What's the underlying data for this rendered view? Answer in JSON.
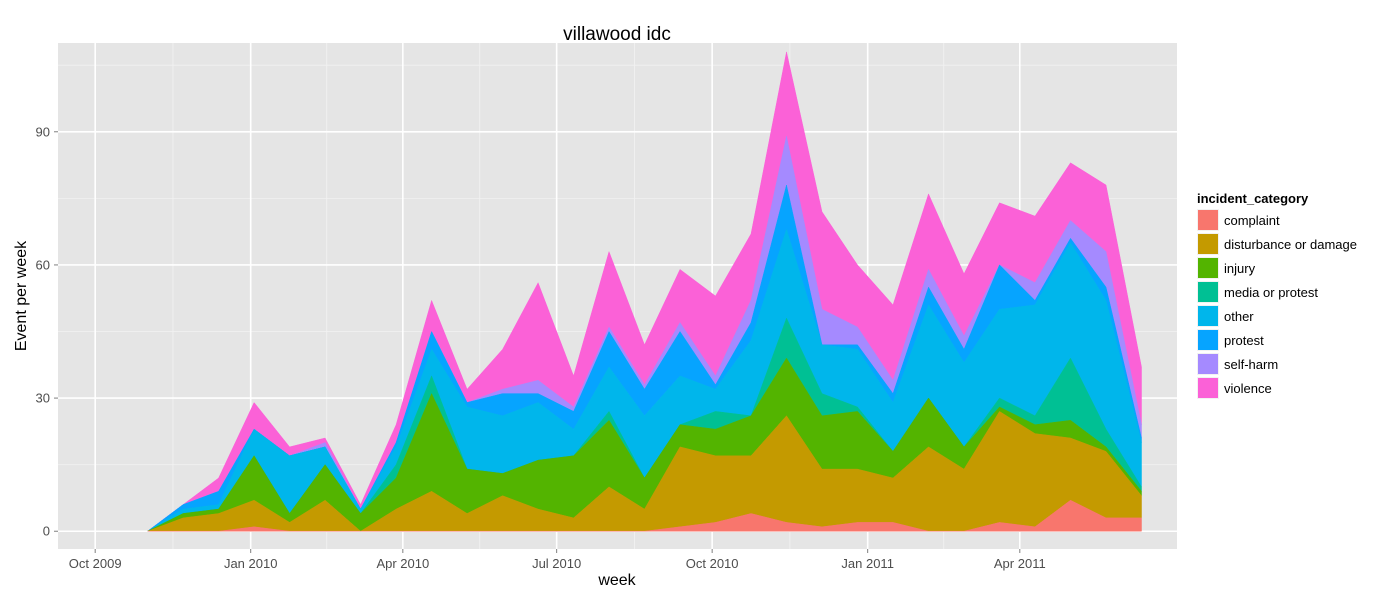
{
  "chart_data": {
    "type": "area",
    "stacked": true,
    "title": "villawood idc",
    "xlabel": "week",
    "ylabel": "Event per week",
    "ylim": [
      -4,
      110
    ],
    "xlim": [
      "2009-09-09",
      "2011-07-03"
    ],
    "yticks": [
      0,
      30,
      60,
      90
    ],
    "grid": true,
    "xticks": [
      {
        "date": "2009-10-01",
        "label": "Oct 2009"
      },
      {
        "date": "2010-01-01",
        "label": "Jan 2010"
      },
      {
        "date": "2010-04-01",
        "label": "Apr 2010"
      },
      {
        "date": "2010-07-01",
        "label": "Jul 2010"
      },
      {
        "date": "2010-10-01",
        "label": "Oct 2010"
      },
      {
        "date": "2011-01-01",
        "label": "Jan 2011"
      },
      {
        "date": "2011-04-01",
        "label": "Apr 2011"
      }
    ],
    "x": [
      "2009-11-01",
      "2009-11-22",
      "2009-12-13",
      "2010-01-03",
      "2010-01-24",
      "2010-02-14",
      "2010-03-07",
      "2010-03-28",
      "2010-04-18",
      "2010-05-09",
      "2010-05-30",
      "2010-06-20",
      "2010-07-11",
      "2010-08-01",
      "2010-08-22",
      "2010-09-12",
      "2010-10-03",
      "2010-10-24",
      "2010-11-14",
      "2010-12-05",
      "2010-12-26",
      "2011-01-16",
      "2011-02-06",
      "2011-02-27",
      "2011-03-20",
      "2011-04-10",
      "2011-05-01",
      "2011-05-22",
      "2011-06-12"
    ],
    "legend": {
      "title": "incident_category",
      "position": "right"
    },
    "series": [
      {
        "name": "complaint",
        "color": "#F8766D",
        "values": [
          0,
          0,
          0,
          1,
          0,
          0,
          0,
          0,
          0,
          0,
          0,
          0,
          0,
          0,
          0,
          1,
          2,
          4,
          2,
          1,
          2,
          2,
          0,
          0,
          2,
          1,
          7,
          3,
          3
        ]
      },
      {
        "name": "disturbance or damage",
        "color": "#C49A00",
        "values": [
          0,
          3,
          4,
          6,
          2,
          7,
          0,
          5,
          9,
          4,
          8,
          5,
          3,
          10,
          5,
          18,
          15,
          13,
          24,
          13,
          12,
          10,
          19,
          14,
          25,
          21,
          14,
          15,
          5
        ]
      },
      {
        "name": "injury",
        "color": "#53B400",
        "values": [
          0,
          1,
          1,
          10,
          2,
          8,
          4,
          7,
          22,
          10,
          5,
          11,
          14,
          15,
          7,
          5,
          6,
          9,
          13,
          12,
          13,
          6,
          11,
          5,
          1,
          2,
          4,
          1,
          1
        ]
      },
      {
        "name": "media or protest",
        "color": "#00C094",
        "values": [
          0,
          0,
          0,
          0,
          0,
          0,
          0,
          3,
          4,
          0,
          0,
          0,
          0,
          2,
          0,
          0,
          4,
          0,
          9,
          5,
          1,
          0,
          0,
          0,
          2,
          2,
          14,
          4,
          1
        ]
      },
      {
        "name": "other",
        "color": "#00B6EB",
        "values": [
          0,
          1,
          1,
          6,
          13,
          4,
          1,
          4,
          6,
          14,
          13,
          13,
          6,
          10,
          14,
          11,
          5,
          17,
          20,
          11,
          13,
          11,
          21,
          19,
          20,
          25,
          26,
          29,
          10
        ]
      },
      {
        "name": "protest",
        "color": "#06A4FF",
        "values": [
          0,
          1,
          3,
          0,
          0,
          0,
          0,
          1,
          4,
          1,
          5,
          2,
          4,
          8,
          6,
          10,
          1,
          4,
          10,
          0,
          1,
          2,
          4,
          3,
          10,
          1,
          1,
          3,
          1
        ]
      },
      {
        "name": "self-harm",
        "color": "#A58AFF",
        "values": [
          0,
          0,
          0,
          0,
          0,
          1,
          0,
          0,
          0,
          0,
          1,
          3,
          1,
          1,
          1,
          2,
          2,
          5,
          11,
          8,
          4,
          3,
          4,
          3,
          0,
          4,
          4,
          8,
          3
        ]
      },
      {
        "name": "violence",
        "color": "#FB61D7",
        "values": [
          0,
          0,
          3,
          6,
          2,
          1,
          1,
          4,
          7,
          3,
          9,
          22,
          7,
          17,
          9,
          12,
          18,
          15,
          19,
          22,
          14,
          17,
          17,
          14,
          14,
          15,
          13,
          15,
          13
        ]
      }
    ]
  }
}
